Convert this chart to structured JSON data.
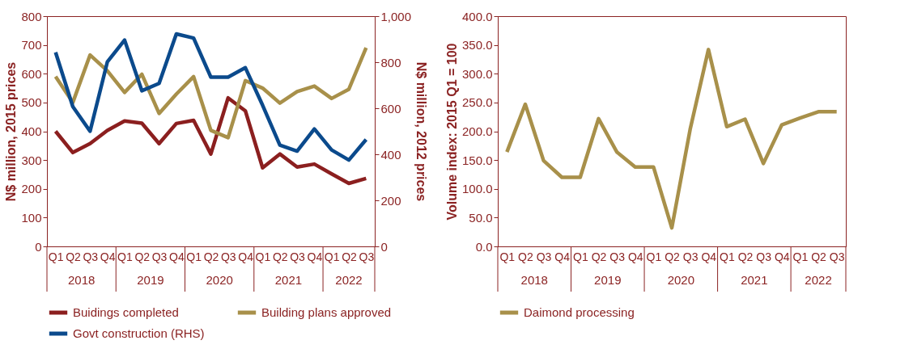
{
  "chart_data": [
    {
      "type": "line",
      "categories": [
        "Q1",
        "Q2",
        "Q3",
        "Q4",
        "Q1",
        "Q2",
        "Q3",
        "Q4",
        "Q1",
        "Q2",
        "Q3",
        "Q4",
        "Q1",
        "Q2",
        "Q3",
        "Q4",
        "Q1",
        "Q2",
        "Q3"
      ],
      "series": [
        {
          "name": "Buidings completed",
          "color": "#8b1f1f",
          "values": [
            400,
            326,
            357,
            403,
            436,
            428,
            357,
            427,
            438,
            321,
            516,
            471,
            273,
            321,
            276,
            286,
            252,
            219,
            236
          ]
        },
        {
          "name": "Building plans approved",
          "color": "#a8904a",
          "values": [
            590,
            500,
            665,
            610,
            535,
            598,
            462,
            529,
            590,
            403,
            378,
            576,
            550,
            498,
            538,
            557,
            514,
            546,
            690
          ]
        },
        {
          "name": "Govt construction (RHS)",
          "color": "#0b4a8c",
          "axis": "y2",
          "values": [
            843,
            607,
            500,
            801,
            896,
            676,
            708,
            923,
            905,
            735,
            735,
            776,
            613,
            440,
            414,
            510,
            419,
            375,
            464
          ]
        }
      ],
      "ylabel": "N$ million, 2015 prices",
      "y2label": "N$ million, 2012 prices",
      "ylim": [
        0,
        800
      ],
      "yticks": [
        0,
        100,
        200,
        300,
        400,
        500,
        600,
        700,
        800
      ],
      "y2lim": [
        0,
        1000
      ],
      "y2ticks": [
        0,
        200,
        400,
        600,
        800,
        {
          "value": 1000,
          "label": "1,000"
        }
      ],
      "legend": "bottom",
      "annotations": [
        "2018",
        "2019",
        "2020",
        "2021",
        "2022"
      ]
    },
    {
      "type": "line",
      "categories": [
        "Q1",
        "Q2",
        "Q3",
        "Q4",
        "Q1",
        "Q2",
        "Q3",
        "Q4",
        "Q1",
        "Q2",
        "Q3",
        "Q4",
        "Q1",
        "Q2",
        "Q3",
        "Q4",
        "Q1",
        "Q2",
        "Q3"
      ],
      "series": [
        {
          "name": "Daimond processing",
          "color": "#a8904a",
          "values": [
            164,
            247,
            149,
            120,
            120,
            222,
            164,
            138,
            138,
            32,
            203,
            342,
            208,
            221,
            144,
            211,
            223,
            234,
            234
          ]
        }
      ],
      "ylabel": "Volume index: 2015  Q1 = 100",
      "ylim": [
        0,
        400
      ],
      "yticks": [
        {
          "value": 0,
          "label": "0.0"
        },
        {
          "value": 50,
          "label": "50.0"
        },
        {
          "value": 100,
          "label": "100.0"
        },
        {
          "value": 150,
          "label": "150.0"
        },
        {
          "value": 200,
          "label": "200.0"
        },
        {
          "value": 250,
          "label": "250.0"
        },
        {
          "value": 300,
          "label": "300.0"
        },
        {
          "value": 350,
          "label": "350.0"
        },
        {
          "value": 400,
          "label": "400.0"
        }
      ],
      "legend": "bottom",
      "annotations": [
        "2018",
        "2019",
        "2020",
        "2021",
        "2022"
      ]
    }
  ]
}
